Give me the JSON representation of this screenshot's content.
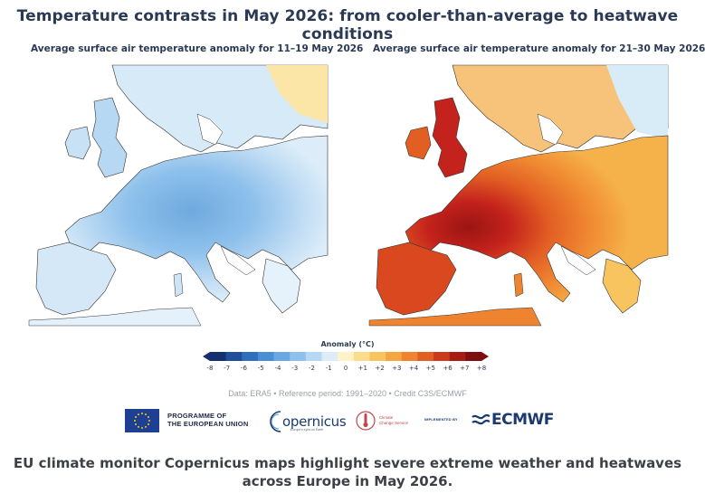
{
  "headline": "Temperature contrasts in May 2026: from cooler-than-average to heatwave conditions",
  "maps": {
    "left": {
      "title": "Average surface air temperature anomaly for 11–19 May 2026",
      "region_tone": "cooler-than-average",
      "base_color": "#cfe6f7",
      "core_color": "#6ea9de"
    },
    "right": {
      "title": "Average surface air temperature anomaly for 21–30 May 2026",
      "region_tone": "heatwave",
      "base_color": "#f6b24a",
      "core_color": "#c4221c"
    }
  },
  "legend": {
    "title": "Anomaly (°C)",
    "ticks": [
      "-8",
      "-7",
      "-6",
      "-5",
      "-4",
      "-3",
      "-2",
      "-1",
      "0",
      "+1",
      "+2",
      "+3",
      "+4",
      "+5",
      "+6",
      "+7",
      "+8"
    ],
    "colors": [
      "#14306e",
      "#1f4f9a",
      "#2f6fbd",
      "#4a8fd6",
      "#6aa8e2",
      "#8fc1ec",
      "#b6d8f3",
      "#dcedf9",
      "#fdf2c8",
      "#fbdc8a",
      "#f8c45f",
      "#f4a640",
      "#ee842f",
      "#e25e23",
      "#cd3a1b",
      "#a81c16",
      "#7e0e10"
    ]
  },
  "credit": "Data: ERA5 • Reference period: 1991–2020 • Credit C3S/ECMWF",
  "logos": {
    "eu_line1": "PROGRAMME OF",
    "eu_line2": "THE EUROPEAN UNION",
    "copernicus": "opernicus",
    "copernicus_sub": "Europe's eyes on Earth",
    "c3s_line1": "Climate",
    "c3s_line2": "Change Service",
    "implemented_by": "IMPLEMENTED BY",
    "ecmwf": "ECMWF"
  },
  "caption": "EU climate monitor Copernicus maps highlight severe extreme weather and heatwaves across Europe in May 2026."
}
